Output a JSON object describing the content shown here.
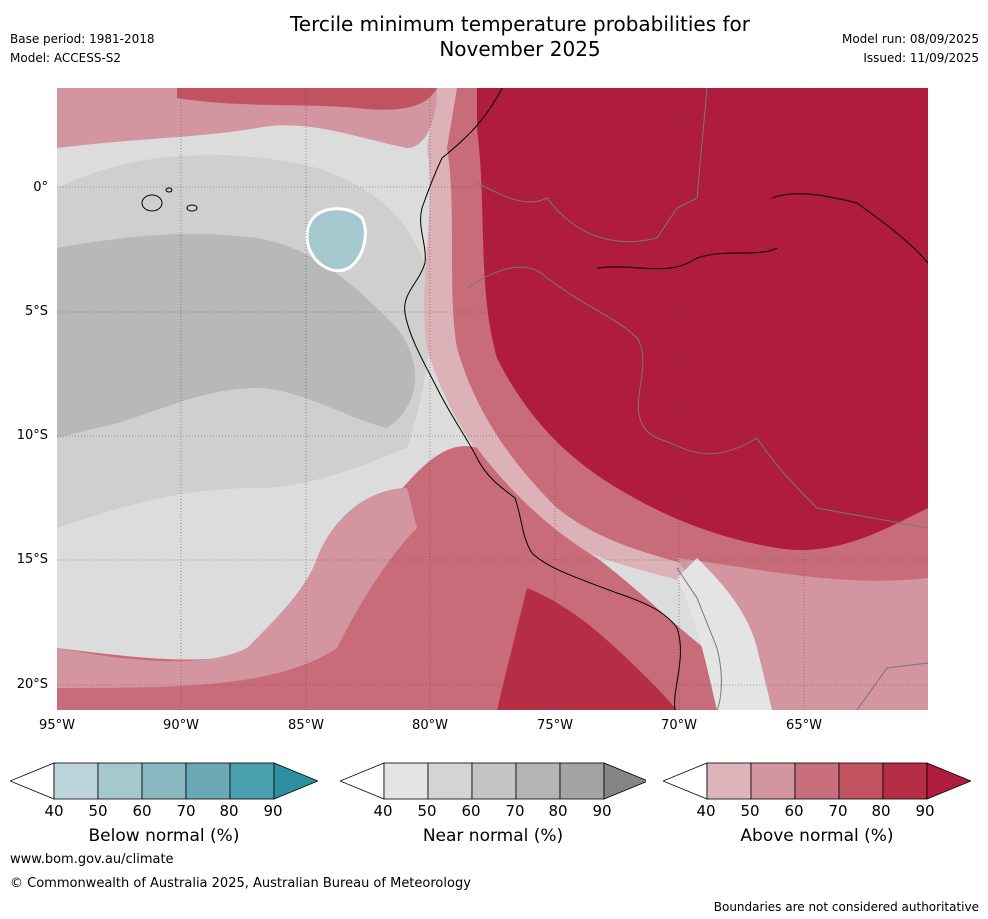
{
  "header": {
    "title_line1": "Tercile minimum temperature probabilities for",
    "title_line2": "November 2025",
    "base_period": "Base period: 1981-2018",
    "model": "Model: ACCESS-S2",
    "model_run": "Model run: 08/09/2025",
    "issued": "Issued: 11/09/2025"
  },
  "map": {
    "lat_labels": [
      "0°",
      "5°S",
      "10°S",
      "15°S",
      "20°S"
    ],
    "lon_labels": [
      "95°W",
      "90°W",
      "85°W",
      "80°W",
      "75°W",
      "70°W",
      "65°W"
    ],
    "colors": {
      "ocean_grey_light": "#dcdcdc",
      "ocean_grey_mid": "#c8c8c8",
      "ocean_grey_dark": "#a9a9a9",
      "above_light": "#dcb1b8",
      "above_mid": "#c96c7a",
      "above_dark": "#b01c3b",
      "below_mid": "#9cc4ca"
    }
  },
  "legend": {
    "below": {
      "title": "Below normal (%)",
      "ticks": [
        "40",
        "50",
        "60",
        "70",
        "80",
        "90"
      ],
      "colors": [
        "#ffffff",
        "#bcd5da",
        "#a4c8cd",
        "#88b7c0",
        "#6aa9b3",
        "#4aa0ae",
        "#2e8fa0"
      ]
    },
    "near": {
      "title": "Near normal (%)",
      "ticks": [
        "40",
        "50",
        "60",
        "70",
        "80",
        "90"
      ],
      "colors": [
        "#ffffff",
        "#e4e4e4",
        "#d4d4d4",
        "#c4c4c4",
        "#b4b4b4",
        "#a4a4a4",
        "#858585"
      ]
    },
    "above": {
      "title": "Above normal (%)",
      "ticks": [
        "40",
        "50",
        "60",
        "70",
        "80",
        "90"
      ],
      "colors": [
        "#ffffff",
        "#dfb5bc",
        "#d3959f",
        "#c96f7c",
        "#c0535f",
        "#b52e45",
        "#b01c3b"
      ]
    }
  },
  "footer": {
    "url": "www.bom.gov.au/climate",
    "copyright": "© Commonwealth of Australia 2025, Australian Bureau of Meteorology",
    "note": "Boundaries are not considered authoritative"
  }
}
